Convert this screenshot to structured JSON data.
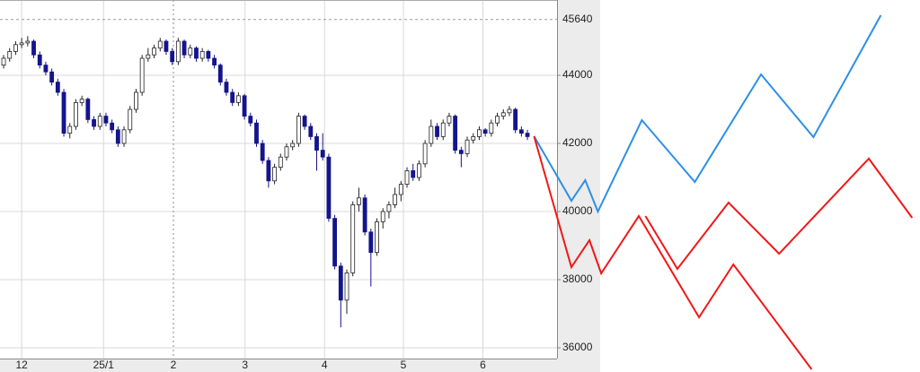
{
  "chart_data": {
    "type": "candlestick",
    "candles": [
      [
        44300,
        44600,
        44200,
        44500
      ],
      [
        44500,
        44800,
        44400,
        44700
      ],
      [
        44700,
        45000,
        44600,
        44900
      ],
      [
        44900,
        45100,
        44800,
        44950
      ],
      [
        44950,
        45150,
        44850,
        45000
      ],
      [
        45000,
        45050,
        44500,
        44600
      ],
      [
        44600,
        44700,
        44200,
        44300
      ],
      [
        44300,
        44400,
        44000,
        44100
      ],
      [
        44100,
        44200,
        43700,
        43800
      ],
      [
        43800,
        43900,
        43400,
        43500
      ],
      [
        43500,
        43600,
        42200,
        42300
      ],
      [
        42300,
        42600,
        42150,
        42500
      ],
      [
        42500,
        43300,
        42400,
        43200
      ],
      [
        43200,
        43400,
        43100,
        43300
      ],
      [
        43300,
        43350,
        42600,
        42700
      ],
      [
        42700,
        42800,
        42400,
        42500
      ],
      [
        42500,
        42900,
        42400,
        42800
      ],
      [
        42800,
        42900,
        42500,
        42600
      ],
      [
        42600,
        42700,
        42300,
        42400
      ],
      [
        42400,
        42500,
        41900,
        42000
      ],
      [
        42000,
        42500,
        41900,
        42400
      ],
      [
        42400,
        43100,
        42300,
        43000
      ],
      [
        43000,
        43600,
        42900,
        43500
      ],
      [
        43500,
        44600,
        43400,
        44500
      ],
      [
        44500,
        44800,
        44400,
        44600
      ],
      [
        44600,
        44900,
        44500,
        44800
      ],
      [
        44800,
        45100,
        44700,
        45000
      ],
      [
        45000,
        45050,
        44600,
        44700
      ],
      [
        44700,
        44800,
        44300,
        44400
      ],
      [
        44400,
        45100,
        44300,
        45000
      ],
      [
        45000,
        45050,
        44500,
        44600
      ],
      [
        44600,
        44900,
        44500,
        44800
      ],
      [
        44800,
        44850,
        44400,
        44500
      ],
      [
        44500,
        44800,
        44400,
        44700
      ],
      [
        44700,
        44750,
        44400,
        44500
      ],
      [
        44500,
        44600,
        44200,
        44300
      ],
      [
        44300,
        44350,
        43700,
        43800
      ],
      [
        43800,
        43900,
        43400,
        43500
      ],
      [
        43500,
        43600,
        43100,
        43200
      ],
      [
        43200,
        43500,
        43100,
        43400
      ],
      [
        43400,
        43450,
        42700,
        42800
      ],
      [
        42800,
        42900,
        42500,
        42600
      ],
      [
        42600,
        42700,
        41900,
        42000
      ],
      [
        42000,
        42100,
        41400,
        41500
      ],
      [
        41500,
        41600,
        40700,
        40900
      ],
      [
        40900,
        41400,
        40800,
        41300
      ],
      [
        41300,
        41700,
        41200,
        41600
      ],
      [
        41600,
        42000,
        41500,
        41900
      ],
      [
        41900,
        42100,
        41800,
        42000
      ],
      [
        42000,
        42900,
        41900,
        42800
      ],
      [
        42800,
        42850,
        42400,
        42500
      ],
      [
        42500,
        42600,
        42100,
        42200
      ],
      [
        42200,
        42300,
        41200,
        41800
      ],
      [
        41800,
        42300,
        41500,
        41600
      ],
      [
        41600,
        41700,
        39700,
        39800
      ],
      [
        39800,
        39900,
        38300,
        38400
      ],
      [
        38400,
        38500,
        36600,
        37400
      ],
      [
        37400,
        38300,
        37000,
        38200
      ],
      [
        38200,
        40300,
        38100,
        40200
      ],
      [
        40200,
        40700,
        40000,
        40400
      ],
      [
        40400,
        40500,
        39300,
        39400
      ],
      [
        39400,
        39500,
        37800,
        38800
      ],
      [
        38800,
        39800,
        38700,
        39700
      ],
      [
        39700,
        40100,
        39500,
        40000
      ],
      [
        40000,
        40300,
        39800,
        40200
      ],
      [
        40200,
        40700,
        40100,
        40500
      ],
      [
        40500,
        40900,
        40300,
        40800
      ],
      [
        40800,
        41300,
        40700,
        41200
      ],
      [
        41200,
        41400,
        40900,
        41000
      ],
      [
        41000,
        41500,
        40900,
        41400
      ],
      [
        41400,
        42100,
        41300,
        42000
      ],
      [
        42000,
        42700,
        41900,
        42500
      ],
      [
        42500,
        42600,
        42100,
        42200
      ],
      [
        42200,
        42700,
        42100,
        42600
      ],
      [
        42600,
        42900,
        42500,
        42800
      ],
      [
        42800,
        42850,
        41700,
        41800
      ],
      [
        41800,
        41900,
        41300,
        41700
      ],
      [
        41700,
        42200,
        41600,
        42100
      ],
      [
        42100,
        42300,
        42000,
        42200
      ],
      [
        42200,
        42500,
        42100,
        42400
      ],
      [
        42400,
        42450,
        42200,
        42300
      ],
      [
        42300,
        42700,
        42200,
        42600
      ],
      [
        42600,
        42900,
        42500,
        42800
      ],
      [
        42800,
        43000,
        42700,
        42900
      ],
      [
        42900,
        43100,
        42800,
        43000
      ],
      [
        43000,
        43050,
        42300,
        42400
      ],
      [
        42400,
        42500,
        42200,
        42300
      ],
      [
        42300,
        42400,
        42100,
        42200
      ]
    ],
    "up_color": "#ffffff",
    "down_color": "#14148c",
    "series": [
      {
        "color": "#2b8fe8",
        "x": [
          88.1,
          94.3,
          96.6,
          98.7,
          106,
          114.8,
          125.8,
          134.5,
          145.7
        ],
        "values": [
          42211,
          40316,
          40921,
          40000,
          42684,
          40868,
          44026,
          42184,
          45763
        ]
      },
      {
        "color": "#f01818",
        "x": [
          88.1,
          94.3,
          97.3,
          99.25,
          105.5,
          115.5,
          121.2,
          134.2
        ],
        "values": [
          42211,
          38368,
          39158,
          38184,
          39868,
          36895,
          38447,
          35368
        ]
      },
      {
        "color": "#f01818",
        "x": [
          106.6,
          111.9,
          120.4,
          128.8,
          143.7,
          150.9
        ],
        "values": [
          39868,
          38316,
          40263,
          38763,
          41553,
          39816
        ]
      }
    ],
    "reference": 45640,
    "reference_color": "#f05a28",
    "xlim": [
      -0.6,
      152.2
    ],
    "ylim": [
      35684,
      46211
    ],
    "yticks": [
      36000,
      38000,
      40000,
      42000,
      44000
    ],
    "xticks": [
      {
        "value": 3,
        "label": "12"
      },
      {
        "value": 16.6,
        "label": "25/1"
      },
      {
        "value": 28.2,
        "label": "2"
      },
      {
        "value": 40.1,
        "label": "3"
      },
      {
        "value": 53.3,
        "label": "4"
      },
      {
        "value": 66.4,
        "label": "5"
      },
      {
        "value": 79.6,
        "label": "6"
      }
    ],
    "grid": true
  }
}
